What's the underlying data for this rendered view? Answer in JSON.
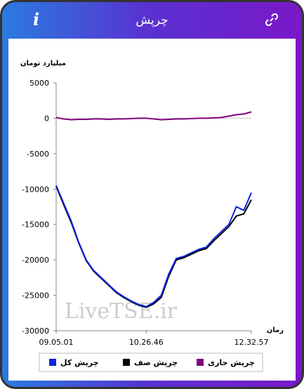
{
  "header": {
    "title": "چرپش",
    "info_icon": "i"
  },
  "chart_data": {
    "type": "line",
    "y_label": "میلیارد تومان",
    "x_label": "زمان",
    "watermark": "LiveTSE.ir",
    "categories": [
      "09.05.01",
      null,
      null,
      null,
      null,
      null,
      null,
      null,
      null,
      null,
      null,
      null,
      "10.26.46",
      null,
      null,
      null,
      null,
      null,
      null,
      null,
      null,
      null,
      null,
      null,
      null,
      null,
      "12.32.57"
    ],
    "ylim": [
      -30000,
      5000
    ],
    "yticks": [
      5000,
      0,
      -5000,
      -10000,
      -15000,
      -20000,
      -25000,
      -30000
    ],
    "series": [
      {
        "name": "چرپش کل",
        "color": "#1020e0",
        "values": [
          -9500,
          -12000,
          -14500,
          -17500,
          -20000,
          -21500,
          -22500,
          -23500,
          -24500,
          -25200,
          -25800,
          -26300,
          -26600,
          -26000,
          -25000,
          -22000,
          -19800,
          -19500,
          -19000,
          -18500,
          -18200,
          -17000,
          -16000,
          -15000,
          -12500,
          -13000,
          -10500
        ]
      },
      {
        "name": "چرپش صف",
        "color": "#000000",
        "values": [
          -9600,
          -12200,
          -14700,
          -17600,
          -20100,
          -21600,
          -22600,
          -23600,
          -24600,
          -25300,
          -25900,
          -26400,
          -26700,
          -26200,
          -25300,
          -22300,
          -20000,
          -19700,
          -19200,
          -18700,
          -18400,
          -17300,
          -16300,
          -15300,
          -13800,
          -13500,
          -11500
        ]
      },
      {
        "name": "چرپش جاری",
        "color": "#800080",
        "values": [
          100,
          -100,
          -200,
          -150,
          -150,
          -100,
          -100,
          -150,
          -100,
          -100,
          -50,
          0,
          0,
          -100,
          -200,
          -150,
          -100,
          -100,
          -50,
          0,
          0,
          50,
          100,
          300,
          500,
          600,
          900
        ]
      }
    ]
  }
}
